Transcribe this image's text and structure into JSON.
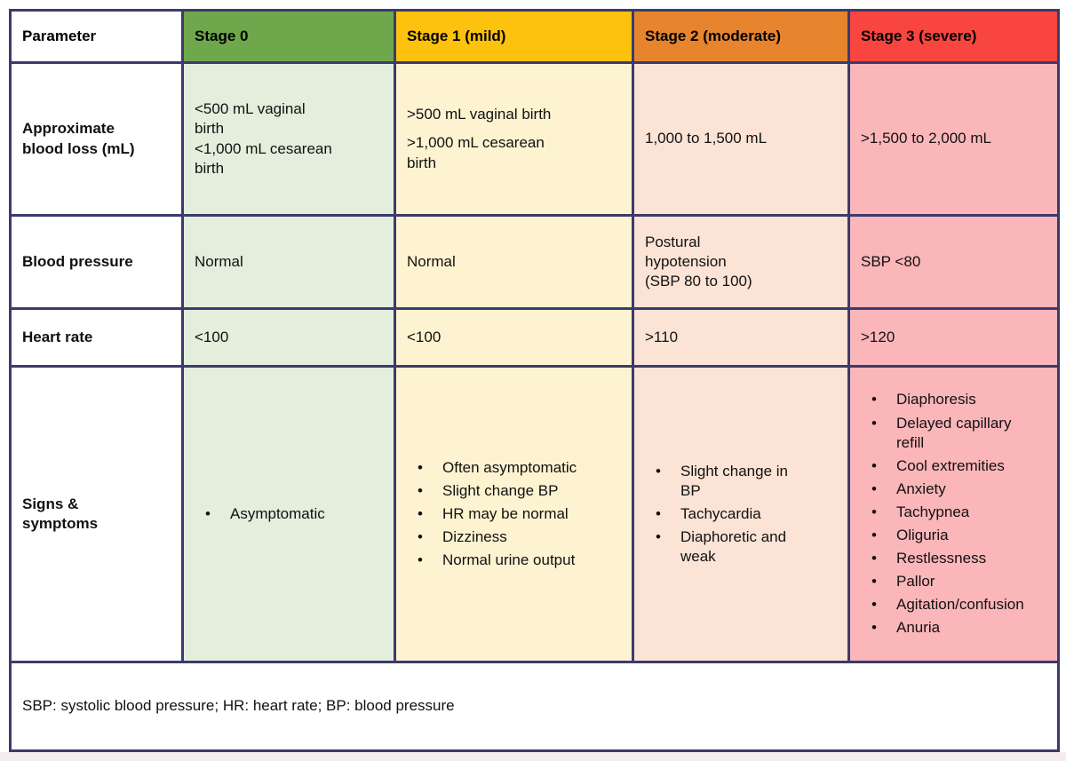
{
  "colors": {
    "border": "#3B3B6B",
    "page_bg": "#FFFFFF",
    "bottom_strip": "#F5EDED",
    "stage0_header": "#6FA84C",
    "stage0_body": "#E3EEDC",
    "stage1_header": "#FCC20D",
    "stage1_body": "#FDF3D1",
    "stage2_header": "#E6852E",
    "stage2_body": "#FBE3D5",
    "stage3_header": "#F9453F",
    "stage3_body": "#FBB6B9"
  },
  "header": {
    "parameter": "Parameter",
    "stage0": "Stage 0",
    "stage1": "Stage 1 (mild)",
    "stage2": "Stage 2 (moderate)",
    "stage3": "Stage 3 (severe)"
  },
  "rows": {
    "blood_loss": {
      "label": "Approximate\nblood loss (mL)",
      "stage0": "<500 mL vaginal\nbirth\n<1,000 mL cesarean\nbirth",
      "stage1_p1": ">500 mL vaginal birth",
      "stage1_p2": ">1,000 mL cesarean\nbirth",
      "stage2": "1,000 to 1,500 mL",
      "stage3": ">1,500 to 2,000 mL"
    },
    "blood_pressure": {
      "label": "Blood pressure",
      "stage0": "Normal",
      "stage1": "Normal",
      "stage2": "Postural\nhypotension\n(SBP 80 to 100)",
      "stage3": "SBP <80"
    },
    "heart_rate": {
      "label": "Heart rate",
      "stage0": "<100",
      "stage1": "<100",
      "stage2": ">110",
      "stage3": ">120"
    },
    "signs": {
      "label": "Signs &\nsymptoms",
      "stage0_items": [
        "Asymptomatic"
      ],
      "stage1_items": [
        "Often asymptomatic",
        "Slight change BP",
        "HR may be normal",
        "Dizziness",
        "Normal urine output"
      ],
      "stage2_items": [
        "Slight change in\nBP",
        "Tachycardia",
        "Diaphoretic and\nweak"
      ],
      "stage3_items": [
        "Diaphoresis",
        "Delayed capillary\nrefill",
        "Cool extremities",
        "Anxiety",
        "Tachypnea",
        "Oliguria",
        "Restlessness",
        "Pallor",
        "Agitation/confusion",
        "Anuria"
      ]
    }
  },
  "footnote": "SBP: systolic blood pressure; HR: heart rate; BP: blood pressure"
}
